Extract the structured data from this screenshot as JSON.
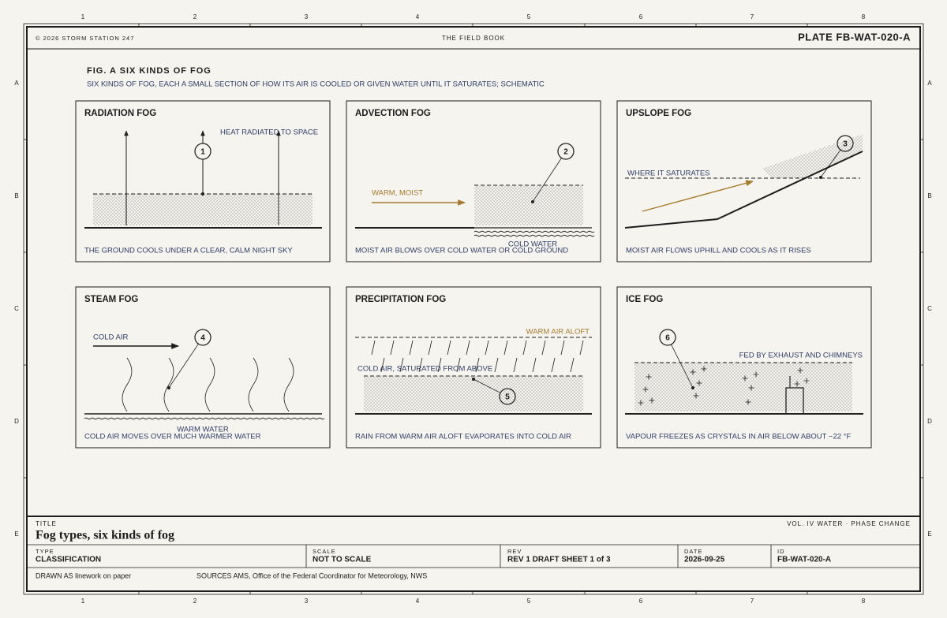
{
  "border": {
    "columns": [
      "1",
      "2",
      "3",
      "4",
      "5",
      "6",
      "7",
      "8"
    ],
    "rows": [
      "A",
      "B",
      "C",
      "D",
      "E"
    ]
  },
  "header": {
    "copyright": "© 2026 STORM STATION 247",
    "book": "THE FIELD BOOK",
    "plate": "PLATE FB-WAT-020-A"
  },
  "figure": {
    "title": "FIG. A SIX KINDS OF FOG",
    "subtitle": "SIX KINDS OF FOG, EACH A SMALL SECTION OF HOW ITS AIR IS COOLED OR GIVEN WATER UNTIL IT SATURATES; SCHEMATIC"
  },
  "panels": [
    {
      "title": "RADIATION FOG",
      "labels": [
        "HEAT RADIATED TO SPACE"
      ],
      "callout": "1",
      "caption": "THE GROUND COOLS UNDER A CLEAR, CALM NIGHT SKY"
    },
    {
      "title": "ADVECTION FOG",
      "labels": [
        "WARM, MOIST",
        "COLD WATER"
      ],
      "callout": "2",
      "caption": "MOIST AIR BLOWS OVER COLD WATER OR COLD GROUND"
    },
    {
      "title": "UPSLOPE FOG",
      "labels": [
        "WHERE IT SATURATES"
      ],
      "callout": "3",
      "caption": "MOIST AIR FLOWS UPHILL AND COOLS AS IT RISES"
    },
    {
      "title": "STEAM FOG",
      "labels": [
        "COLD AIR",
        "WARM WATER"
      ],
      "callout": "4",
      "caption": "COLD AIR MOVES OVER MUCH WARMER WATER"
    },
    {
      "title": "PRECIPITATION FOG",
      "labels": [
        "WARM AIR ALOFT",
        "COLD AIR, SATURATED FROM ABOVE"
      ],
      "callout": "5",
      "caption": "RAIN FROM WARM AIR ALOFT EVAPORATES INTO COLD AIR"
    },
    {
      "title": "ICE FOG",
      "labels": [
        "FED BY EXHAUST AND CHIMNEYS"
      ],
      "callout": "6",
      "caption": "VAPOUR FREEZES AS CRYSTALS IN AIR BELOW ABOUT −22 °F"
    }
  ],
  "title_block": {
    "label": "TITLE",
    "title": "Fog types, six kinds of fog",
    "volume": "VOL. IV WATER · PHASE CHANGE",
    "fields": [
      {
        "label": "TYPE",
        "value": "CLASSIFICATION"
      },
      {
        "label": "SCALE",
        "value": "NOT TO SCALE"
      },
      {
        "label": "REV",
        "value": "REV 1 DRAFT SHEET 1 of 3"
      },
      {
        "label": "DATE",
        "value": "2026-09-25"
      },
      {
        "label": "ID",
        "value": "FB-WAT-020-A"
      }
    ],
    "drawn": "DRAWN AS linework on paper",
    "sources": "SOURCES AMS, Office of the Federal Coordinator for Meteorology, NWS"
  }
}
